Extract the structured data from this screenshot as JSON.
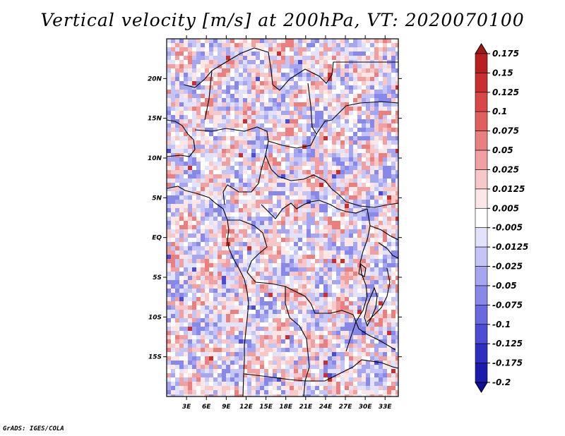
{
  "chart_data": {
    "type": "heatmap",
    "title": "Vertical velocity [m/s] at 200hPa, VT: 2020070100",
    "credit": "GrADS: IGES/COLA",
    "xlim": [
      0,
      35
    ],
    "ylim": [
      -20,
      25
    ],
    "x_ticks": [
      {
        "value": 3,
        "label": "3E"
      },
      {
        "value": 6,
        "label": "6E"
      },
      {
        "value": 9,
        "label": "9E"
      },
      {
        "value": 12,
        "label": "12E"
      },
      {
        "value": 15,
        "label": "15E"
      },
      {
        "value": 18,
        "label": "18E"
      },
      {
        "value": 21,
        "label": "21E"
      },
      {
        "value": 24,
        "label": "24E"
      },
      {
        "value": 27,
        "label": "27E"
      },
      {
        "value": 30,
        "label": "30E"
      },
      {
        "value": 33,
        "label": "33E"
      }
    ],
    "y_ticks": [
      {
        "value": 20,
        "label": "20N"
      },
      {
        "value": 15,
        "label": "15N"
      },
      {
        "value": 10,
        "label": "10N"
      },
      {
        "value": 5,
        "label": "5N"
      },
      {
        "value": 0,
        "label": "EQ"
      },
      {
        "value": -5,
        "label": "5S"
      },
      {
        "value": -10,
        "label": "10S"
      },
      {
        "value": -15,
        "label": "15S"
      }
    ],
    "colorbar": {
      "labels": [
        "0.175",
        "0.15",
        "0.125",
        "0.1",
        "0.075",
        "0.05",
        "0.025",
        "0.0125",
        "0.005",
        "-0.005",
        "-0.0125",
        "-0.025",
        "-0.05",
        "-0.075",
        "-0.1",
        "-0.125",
        "-0.175",
        "-0.2"
      ],
      "colors": [
        "#a01818",
        "#b82020",
        "#c83030",
        "#d84848",
        "#e06060",
        "#e88080",
        "#f0a0a0",
        "#f8c8c8",
        "#fce6e6",
        "#ffffff",
        "#e2e2fc",
        "#c4c4f6",
        "#a6a6f0",
        "#8888e8",
        "#6a6ae0",
        "#4c4cd4",
        "#3030c0",
        "#1c1cac",
        "#10109a"
      ],
      "extend": "both"
    },
    "value_range": [
      -0.2,
      0.175
    ],
    "grid": false
  }
}
